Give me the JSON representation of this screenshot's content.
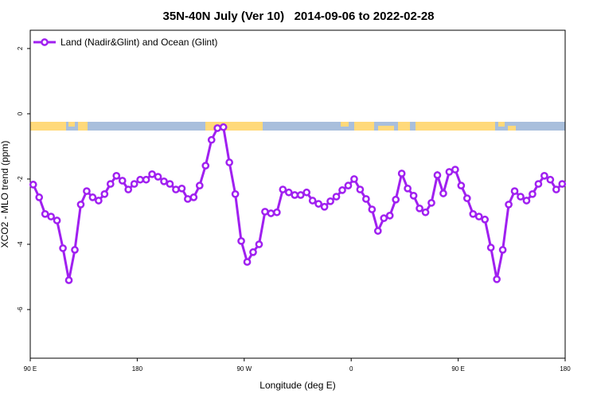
{
  "chart_data": {
    "type": "line",
    "title": "35N-40N July (Ver 10)   2014-09-06 to 2022-02-28",
    "x_label": "Longitude (deg E)",
    "y_label": "XCO2 - MLO trend (ppm)",
    "xlim": [
      90,
      540
    ],
    "xticks": [
      {
        "value": 90,
        "label": "90 E"
      },
      180,
      {
        "value": 270,
        "label": "90 W"
      },
      {
        "value": 360,
        "label": "0"
      },
      {
        "value": 450,
        "label": "90 E"
      },
      {
        "value": 540,
        "label": "180"
      }
    ],
    "ylim": [
      -7.49,
      2.56
    ],
    "yticks": [
      -6,
      -4,
      -2,
      0,
      2
    ],
    "legend": "top-left",
    "x": [
      92.5,
      97.5,
      102.5,
      107.5,
      112.5,
      117.5,
      122.5,
      127.5,
      132.5,
      137.5,
      142.5,
      147.5,
      152.5,
      157.5,
      162.5,
      167.5,
      172.5,
      177.5,
      182.5,
      187.5,
      192.5,
      197.5,
      202.5,
      207.5,
      212.5,
      217.5,
      222.5,
      227.5,
      232.5,
      237.5,
      242.5,
      247.5,
      252.5,
      257.5,
      262.5,
      267.5,
      272.5,
      277.5,
      282.5,
      287.5,
      292.5,
      297.5,
      302.5,
      307.5,
      312.5,
      317.5,
      322.5,
      327.5,
      332.5,
      337.5,
      342.5,
      347.5,
      352.5,
      357.5,
      362.5,
      367.5,
      372.5,
      377.5,
      382.5,
      387.5,
      392.5,
      397.5,
      402.5,
      407.5,
      412.5,
      417.5,
      422.5,
      427.5,
      432.5,
      437.5,
      442.5,
      447.5,
      452.5,
      457.5,
      462.5,
      467.5,
      472.5,
      477.5,
      482.5,
      487.5,
      492.5,
      497.5,
      502.5,
      507.5,
      512.5,
      517.5,
      522.5,
      527.5,
      532.5,
      537.5
    ],
    "series": [
      {
        "name": "Land (Nadir&Glint) and Ocean (Glint)",
        "color": "#a020f0",
        "values": [
          -2.17,
          -2.56,
          -3.07,
          -3.15,
          -3.27,
          -4.12,
          -5.1,
          -4.17,
          -2.78,
          -2.37,
          -2.56,
          -2.66,
          -2.46,
          -2.15,
          -1.9,
          -2.05,
          -2.32,
          -2.15,
          -2.02,
          -2.02,
          -1.85,
          -1.93,
          -2.07,
          -2.15,
          -2.32,
          -2.29,
          -2.61,
          -2.56,
          -2.2,
          -1.59,
          -0.8,
          -0.44,
          -0.41,
          -1.49,
          -2.46,
          -3.9,
          -4.54,
          -4.24,
          -4.0,
          -3.0,
          -3.05,
          -3.02,
          -2.32,
          -2.41,
          -2.49,
          -2.49,
          -2.41,
          -2.66,
          -2.76,
          -2.85,
          -2.68,
          -2.54,
          -2.34,
          -2.2,
          -2.0,
          -2.32,
          -2.61,
          -2.93,
          -3.59,
          -3.2,
          -3.12,
          -2.63,
          -1.83,
          -2.29,
          -2.51,
          -2.9,
          -3.02,
          -2.73,
          -1.88,
          -2.44,
          -1.78,
          -1.71,
          -2.2,
          -2.59,
          -3.07,
          -3.15,
          -3.24,
          -4.1,
          -5.07,
          -4.17,
          -2.78,
          -2.37,
          -2.54,
          -2.66,
          -2.46,
          -2.15,
          -1.9,
          -2.02,
          -2.32,
          -2.15
        ]
      }
    ]
  }
}
